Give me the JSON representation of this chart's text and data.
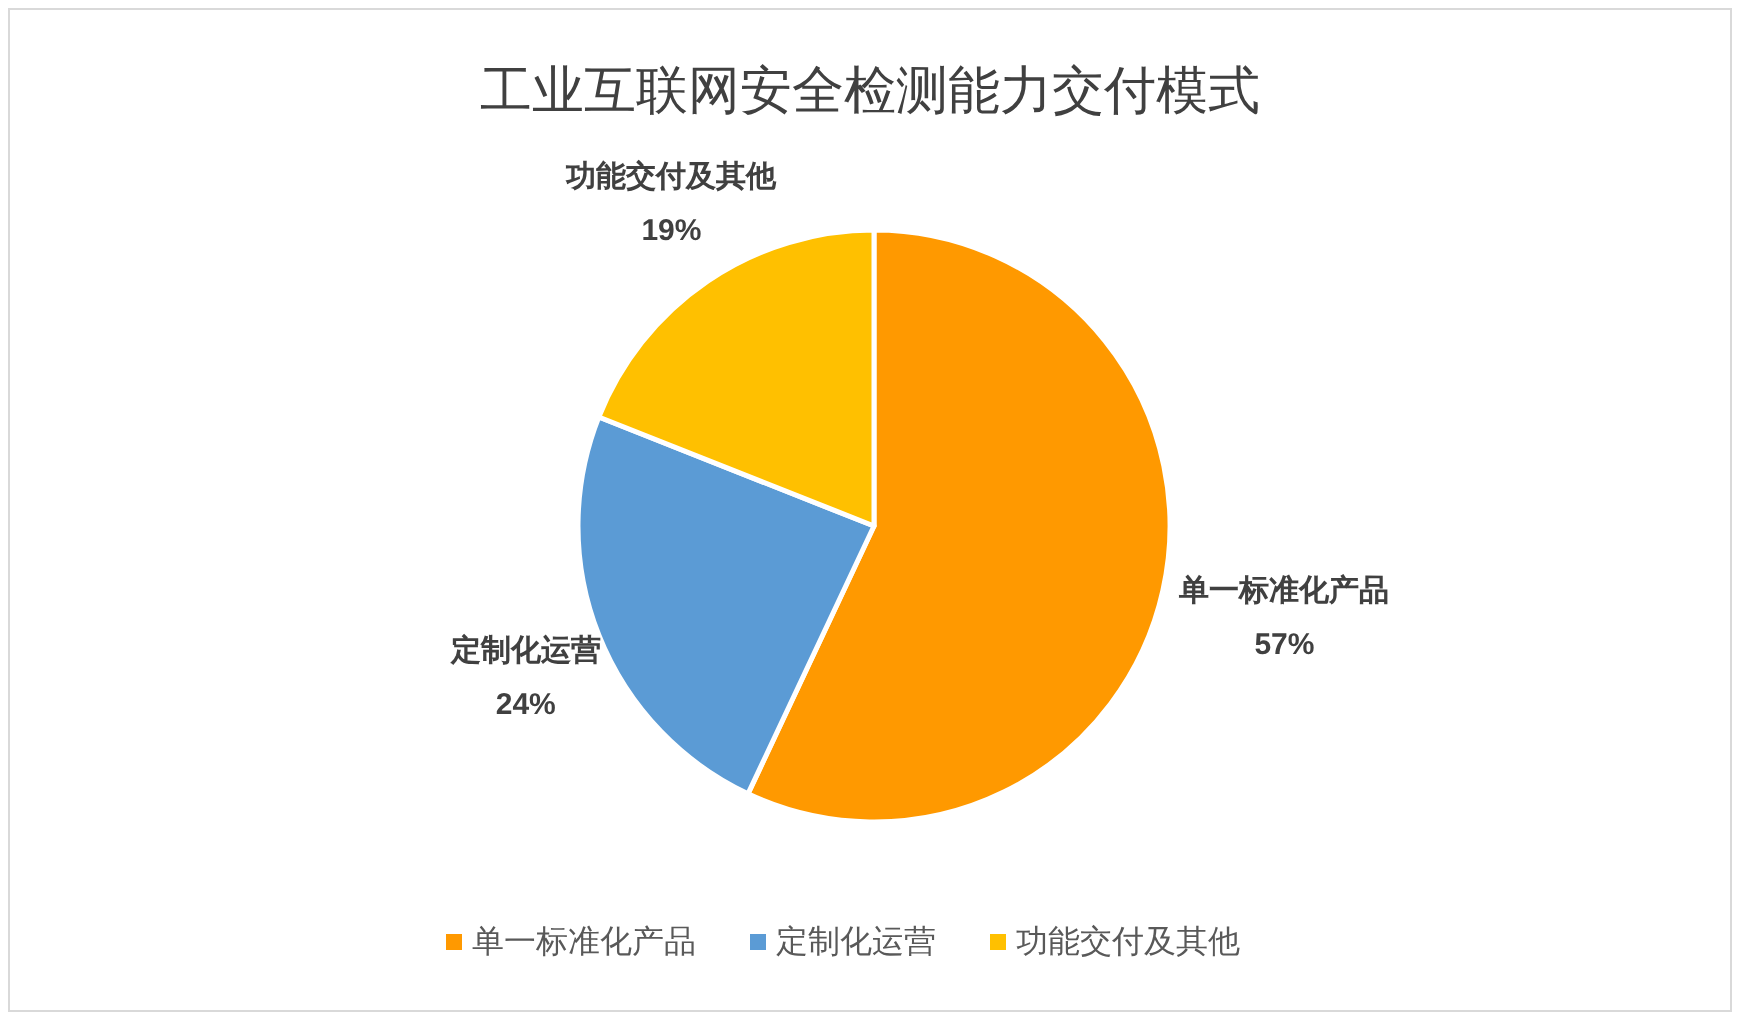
{
  "chart_data": {
    "type": "pie",
    "title": "工业互联网安全检测能力交付模式",
    "categories": [
      "单一标准化产品",
      "定制化运营",
      "功能交付及其他"
    ],
    "values": [
      57,
      24,
      19
    ],
    "colors": [
      "#ff9900",
      "#5b9bd5",
      "#ffc000"
    ],
    "value_labels": [
      "57%",
      "24%",
      "19%"
    ],
    "legend": "bottom"
  }
}
